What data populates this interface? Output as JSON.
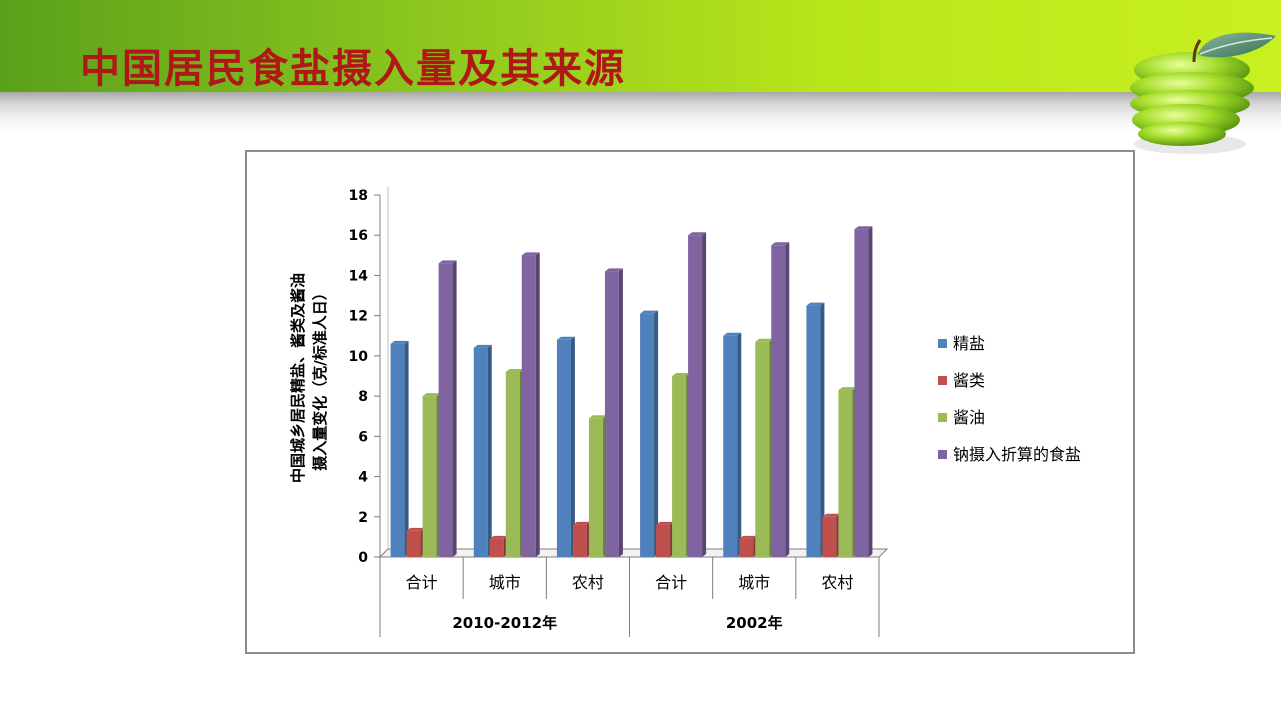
{
  "slide": {
    "title": "中国居民食盐摄入量及其来源"
  },
  "chart_data": {
    "type": "bar",
    "ylabel": "中国城乡居民精盐、酱类及酱油摄入量变化（克/标准人日）",
    "ylim": [
      0,
      18
    ],
    "yticks": [
      "0",
      "2",
      "4",
      "6",
      "8",
      "10",
      "12",
      "14",
      "16",
      "18"
    ],
    "categories": [
      "合计",
      "城市",
      "农村",
      "合计",
      "城市",
      "农村"
    ],
    "groups": [
      {
        "label": "2010-2012年",
        "categories": [
          "合计",
          "城市",
          "农村"
        ]
      },
      {
        "label": "2002年",
        "categories": [
          "合计",
          "城市",
          "农村"
        ]
      }
    ],
    "series": [
      {
        "name": "精盐",
        "color": "#4f81bd",
        "values": [
          10.6,
          10.4,
          10.8,
          12.1,
          11.0,
          12.5
        ]
      },
      {
        "name": "酱类",
        "color": "#c0504d",
        "values": [
          1.3,
          0.9,
          1.6,
          1.6,
          0.9,
          2.0
        ]
      },
      {
        "name": "酱油",
        "color": "#9bbb59",
        "values": [
          8.0,
          9.2,
          6.9,
          9.0,
          10.7,
          8.3
        ]
      },
      {
        "name": "钠摄入折算的食盐",
        "color": "#8064a2",
        "values": [
          14.6,
          15.0,
          14.2,
          16.0,
          15.5,
          16.3
        ]
      }
    ],
    "legend_position": "right",
    "grid": false
  }
}
